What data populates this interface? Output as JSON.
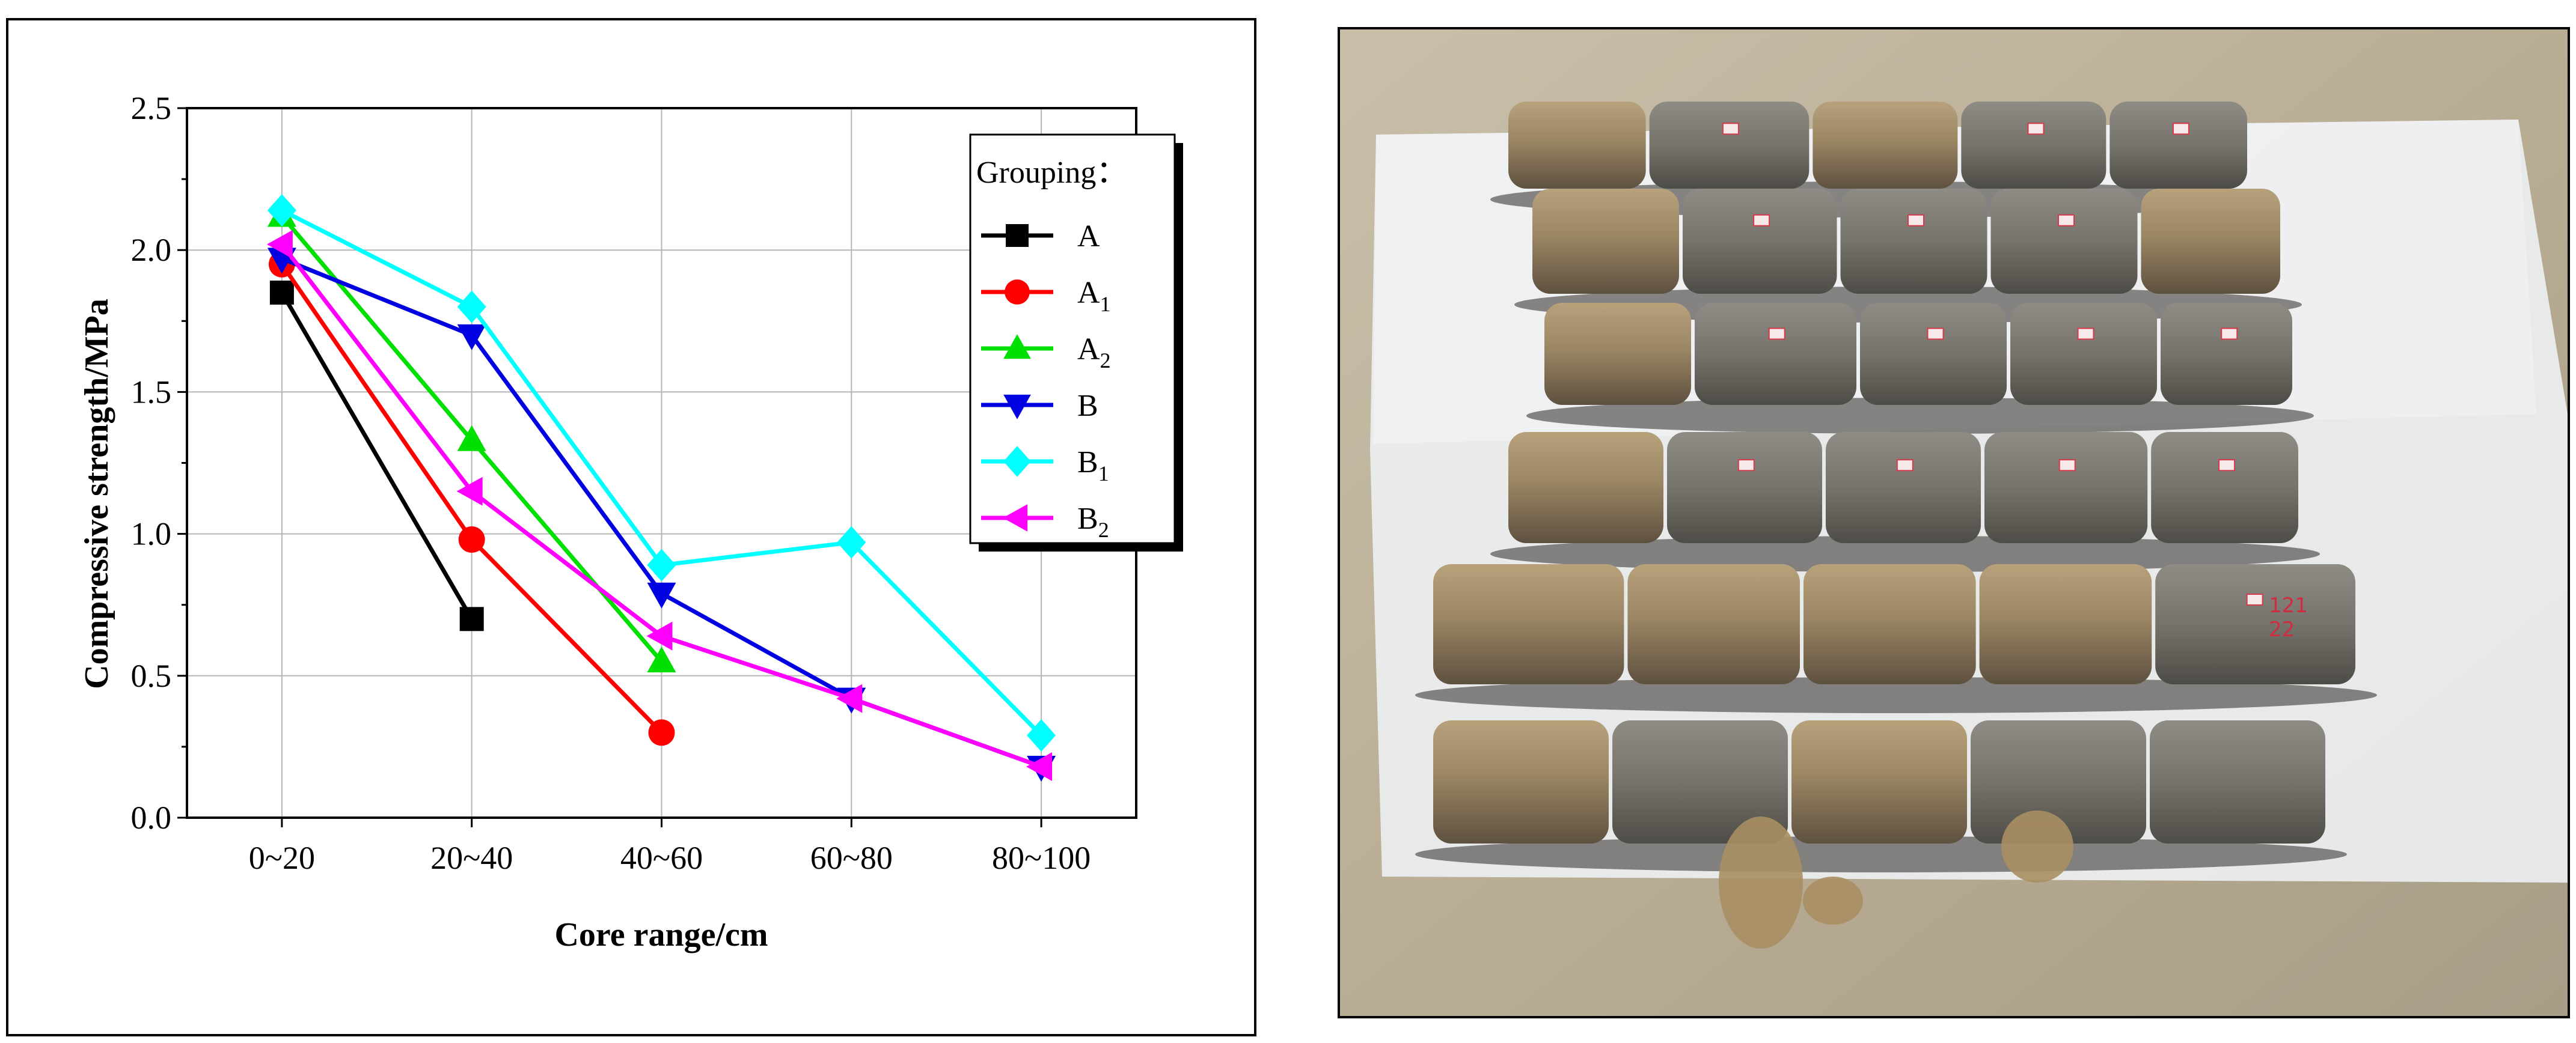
{
  "chart_data": {
    "type": "line",
    "xlabel": "Core range/cm",
    "ylabel": "Compressive strength/MPa",
    "categories": [
      "0~20",
      "20~40",
      "40~60",
      "60~80",
      "80~100"
    ],
    "ylim": [
      0.0,
      2.5
    ],
    "yticks": [
      "0.0",
      "0.5",
      "1.0",
      "1.5",
      "2.0",
      "2.5"
    ],
    "grid": true,
    "legend_title": "Grouping：",
    "legend_position": "top-right",
    "series": [
      {
        "name": "A",
        "base": "A",
        "sub": "",
        "color": "#000000",
        "marker": "square",
        "values": [
          1.85,
          0.7,
          null,
          null,
          null
        ]
      },
      {
        "name": "A1",
        "base": "A",
        "sub": "1",
        "color": "#ff0000",
        "marker": "circle",
        "values": [
          1.95,
          0.98,
          0.3,
          null,
          null
        ]
      },
      {
        "name": "A2",
        "base": "A",
        "sub": "2",
        "color": "#00e000",
        "marker": "triangle-up",
        "values": [
          2.12,
          1.33,
          0.55,
          null,
          null
        ]
      },
      {
        "name": "B",
        "base": "B",
        "sub": "",
        "color": "#0000e0",
        "marker": "triangle-down",
        "values": [
          1.97,
          1.7,
          0.79,
          0.42,
          0.18
        ]
      },
      {
        "name": "B1",
        "base": "B",
        "sub": "1",
        "color": "#00ffff",
        "marker": "diamond",
        "values": [
          2.14,
          1.8,
          0.89,
          0.97,
          0.29
        ]
      },
      {
        "name": "B2",
        "base": "B",
        "sub": "2",
        "color": "#ff00ff",
        "marker": "triangle-left",
        "values": [
          2.02,
          1.15,
          0.64,
          0.42,
          0.18
        ]
      }
    ]
  },
  "photo": {
    "caption_labels": [
      "121",
      "22"
    ]
  }
}
